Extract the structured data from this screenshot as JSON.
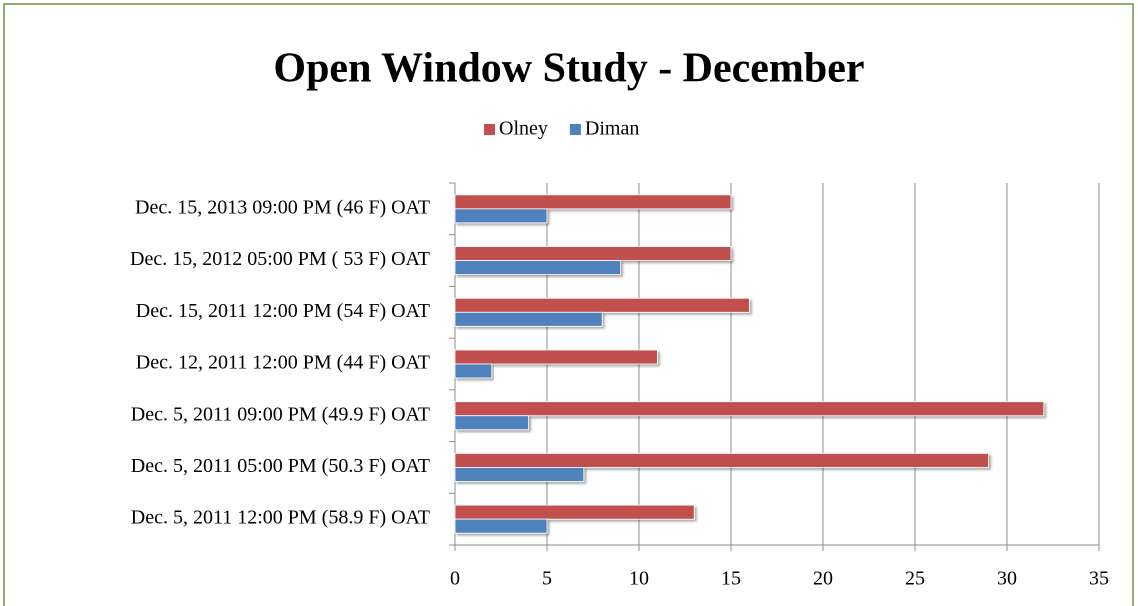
{
  "chart_data": {
    "type": "hbar",
    "title": "Open Window Study - December",
    "categories": [
      "Dec. 15, 2013 09:00 PM (46 F) OAT",
      "Dec. 15, 2012 05:00 PM ( 53 F) OAT",
      "Dec. 15, 2011 12:00 PM (54 F) OAT",
      "Dec. 12, 2011 12:00 PM (44 F) OAT",
      "Dec. 5, 2011 09:00 PM (49.9 F) OAT",
      "Dec. 5, 2011 05:00 PM (50.3 F) OAT",
      "Dec. 5, 2011 12:00 PM (58.9 F) OAT"
    ],
    "series": [
      {
        "name": "Olney",
        "color": "#c0504d",
        "values": [
          15,
          15,
          16,
          11,
          32,
          29,
          13
        ]
      },
      {
        "name": "Diman",
        "color": "#4f81bd",
        "values": [
          5,
          9,
          8,
          2,
          4,
          7,
          5
        ]
      }
    ],
    "xlim": [
      0,
      35
    ],
    "xticks": [
      0,
      5,
      10,
      15,
      20,
      25,
      30,
      35
    ],
    "grid": true,
    "legend": "top"
  }
}
